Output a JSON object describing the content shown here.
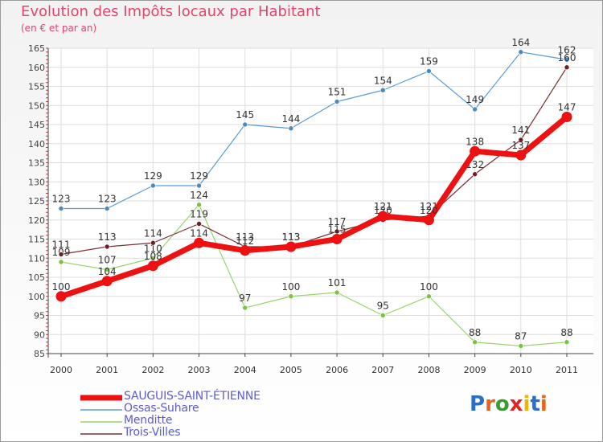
{
  "title": "Evolution des Impôts locaux par Habitant",
  "subtitle": "(en € et par an)",
  "brand": {
    "text": "Proxiti",
    "letter_colors": [
      "#2c6fc4",
      "#e8641b",
      "#3a9b32",
      "#e02424",
      "#f2b200",
      "#2c6fc4",
      "#e8641b"
    ]
  },
  "chart_data": {
    "type": "line",
    "x": [
      "2000",
      "2001",
      "2002",
      "2003",
      "2004",
      "2005",
      "2006",
      "2007",
      "2008",
      "2009",
      "2010",
      "2011"
    ],
    "ylim": [
      85,
      165
    ],
    "yticks": [
      85,
      90,
      95,
      100,
      105,
      110,
      115,
      120,
      125,
      130,
      135,
      140,
      145,
      150,
      155,
      160,
      165
    ],
    "grid": true,
    "legend_position": "bottom-left",
    "series": [
      {
        "name": "Ossas-Suhare",
        "color": "#5b9bd5",
        "marker": "#4a8ac0",
        "width": 1.2,
        "values": [
          123,
          123,
          129,
          129,
          145,
          144,
          151,
          154,
          159,
          149,
          164,
          162
        ]
      },
      {
        "name": "Menditte",
        "color": "#9ad46a",
        "marker": "#7cc046",
        "width": 1.2,
        "values": [
          109,
          107,
          110,
          124,
          97,
          100,
          101,
          95,
          100,
          88,
          87,
          88
        ]
      },
      {
        "name": "Trois-Villes",
        "color": "#7a2e35",
        "marker": "#6b1f26",
        "width": 1.2,
        "values": [
          111,
          113,
          114,
          119,
          113,
          113,
          117,
          120,
          121,
          132,
          141,
          160
        ]
      },
      {
        "name": "SAUGUIS-SAINT-ÉTIENNE",
        "color": "#ee1111",
        "marker": "#ee1111",
        "width": 7,
        "values": [
          100,
          104,
          108,
          114,
          112,
          113,
          115,
          121,
          120,
          138,
          137,
          147
        ]
      }
    ],
    "legend_order": [
      "SAUGUIS-SAINT-ÉTIENNE",
      "Ossas-Suhare",
      "Menditte",
      "Trois-Villes"
    ]
  }
}
